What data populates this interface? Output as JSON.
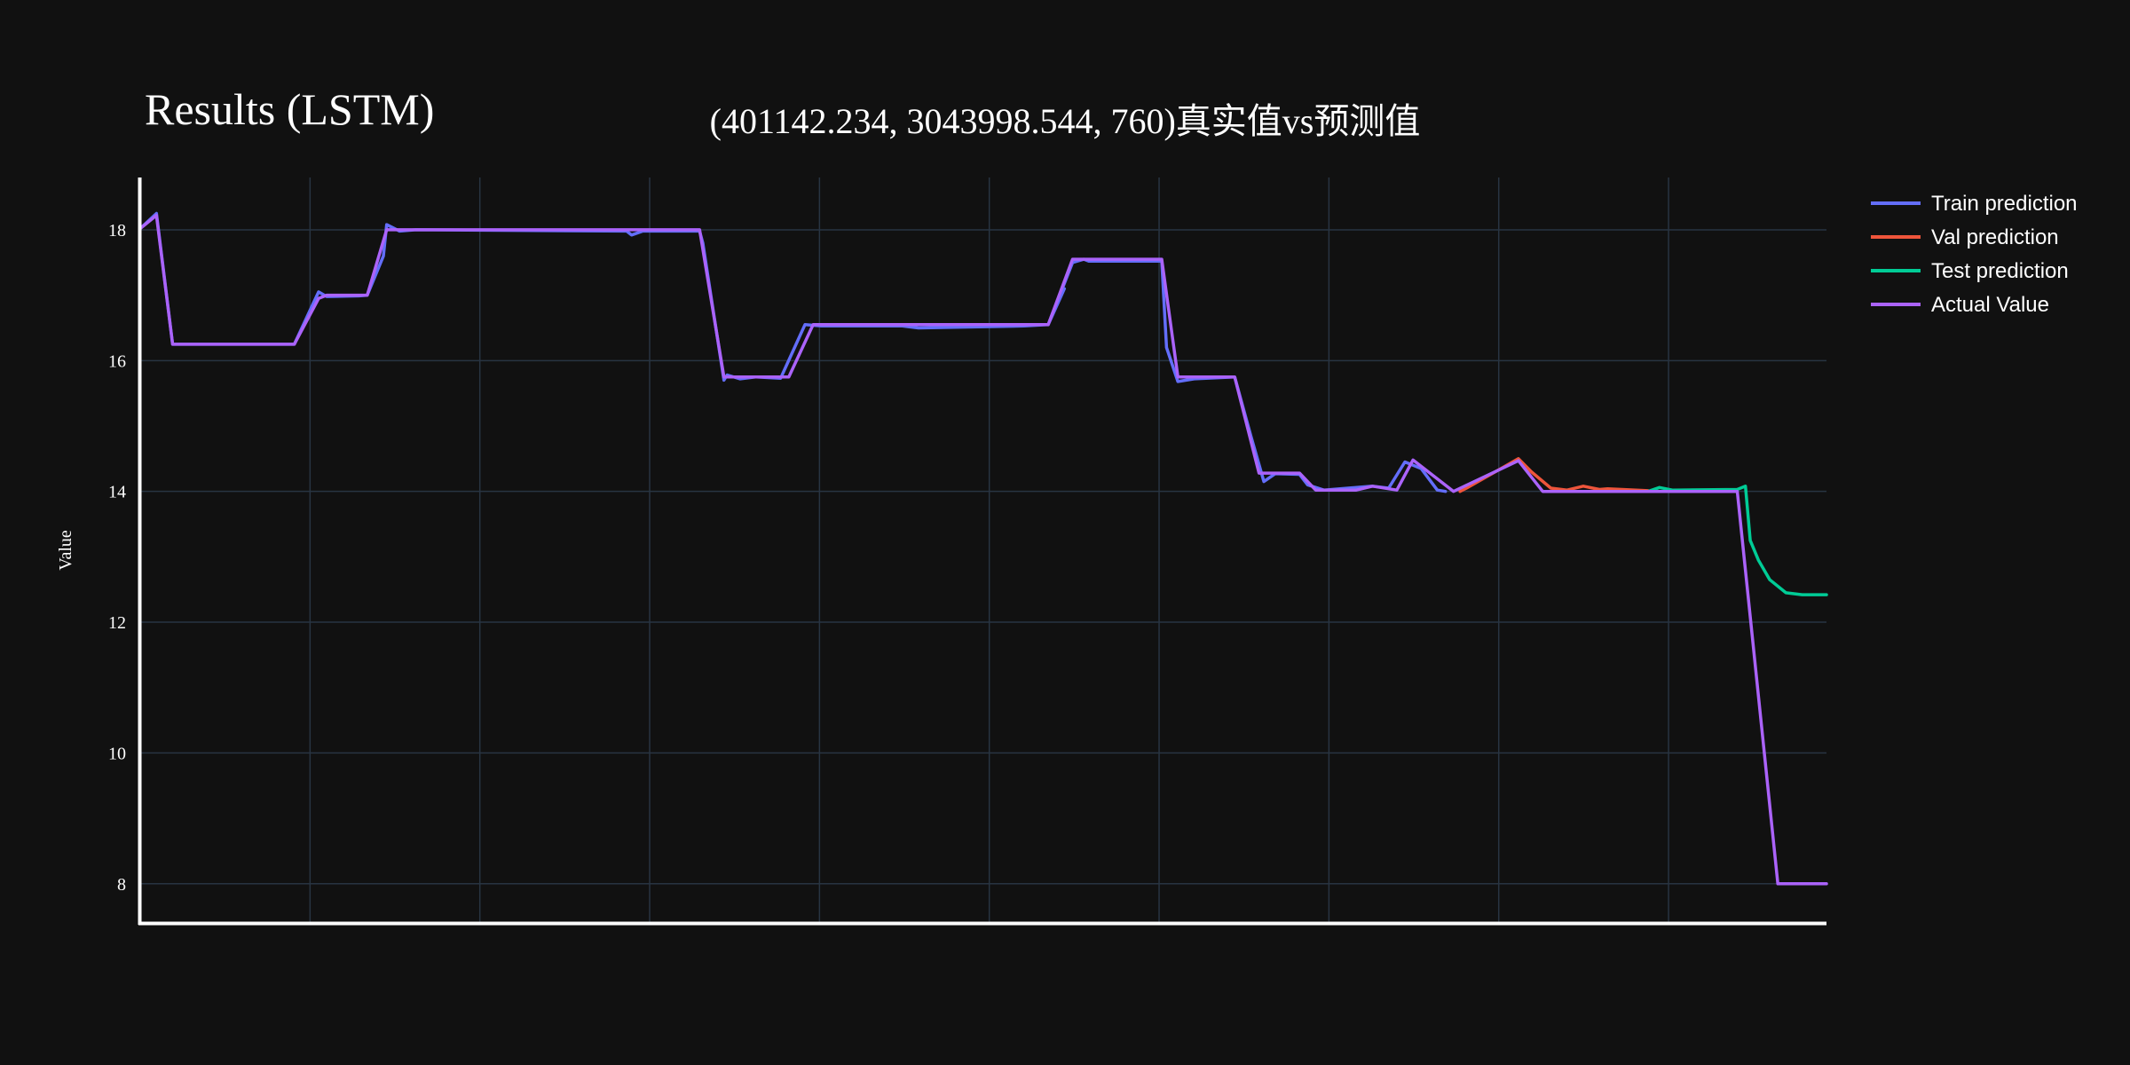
{
  "chart_data": {
    "type": "line",
    "title": "Results (LSTM)",
    "subtitle": "(401142.234, 3043998.544, 760)真实值vs预测值",
    "xlabel": "",
    "ylabel": "Value",
    "xlim": [
      0,
      1000
    ],
    "ylim": [
      7.4,
      18.8
    ],
    "yticks": [
      8,
      10,
      12,
      14,
      16,
      18
    ],
    "x_gridlines": 9,
    "grid": true,
    "legend_position": "top-right",
    "background": "#111111",
    "series": [
      {
        "name": "Train prediction",
        "color": "#636efa",
        "points": [
          [
            0,
            18.02
          ],
          [
            10,
            18.25
          ],
          [
            20,
            16.25
          ],
          [
            95,
            16.25
          ],
          [
            110,
            17.05
          ],
          [
            115,
            16.98
          ],
          [
            135,
            16.99
          ],
          [
            140,
            17.0
          ],
          [
            150,
            17.6
          ],
          [
            152,
            18.08
          ],
          [
            160,
            17.98
          ],
          [
            170,
            18.0
          ],
          [
            300,
            17.98
          ],
          [
            303,
            17.92
          ],
          [
            310,
            17.98
          ],
          [
            345,
            17.98
          ],
          [
            347,
            17.8
          ],
          [
            360,
            15.7
          ],
          [
            362,
            15.78
          ],
          [
            370,
            15.72
          ],
          [
            380,
            15.75
          ],
          [
            395,
            15.73
          ],
          [
            410,
            16.55
          ],
          [
            420,
            16.53
          ],
          [
            470,
            16.53
          ],
          [
            480,
            16.5
          ],
          [
            545,
            16.53
          ],
          [
            560,
            16.55
          ],
          [
            570,
            17.1
          ],
          [
            560,
            16.55
          ],
          [
            575,
            17.5
          ],
          [
            582,
            17.55
          ],
          [
            585,
            17.52
          ],
          [
            615,
            17.52
          ],
          [
            630,
            17.52
          ],
          [
            633,
            16.2
          ],
          [
            640,
            15.68
          ],
          [
            650,
            15.72
          ],
          [
            675,
            15.75
          ],
          [
            685,
            14.85
          ],
          [
            693,
            14.15
          ],
          [
            700,
            14.27
          ],
          [
            715,
            14.26
          ],
          [
            720,
            14.1
          ],
          [
            730,
            14.02
          ],
          [
            760,
            14.08
          ],
          [
            770,
            14.05
          ],
          [
            780,
            14.45
          ],
          [
            790,
            14.35
          ],
          [
            800,
            14.02
          ],
          [
            805,
            14.0
          ]
        ]
      },
      {
        "name": "Val prediction",
        "color": "#ef553b",
        "points": [
          [
            814,
            14.0
          ],
          [
            818,
            14.05
          ],
          [
            850,
            14.5
          ],
          [
            858,
            14.3
          ],
          [
            870,
            14.05
          ],
          [
            880,
            14.02
          ],
          [
            890,
            14.08
          ],
          [
            900,
            14.03
          ],
          [
            905,
            14.04
          ],
          [
            930,
            14.01
          ]
        ]
      },
      {
        "name": "Test prediction",
        "color": "#00cc96",
        "points": [
          [
            930,
            14.0
          ],
          [
            937,
            14.06
          ],
          [
            945,
            14.02
          ],
          [
            985,
            14.03
          ],
          [
            990,
            14.08
          ],
          [
            993,
            13.25
          ],
          [
            998,
            12.95
          ],
          [
            1005,
            12.65
          ],
          [
            1015,
            12.45
          ],
          [
            1025,
            12.42
          ],
          [
            1040,
            12.42
          ]
        ]
      },
      {
        "name": "Actual Value",
        "color": "#ab63fa",
        "points": [
          [
            0,
            18.02
          ],
          [
            10,
            18.22
          ],
          [
            20,
            16.25
          ],
          [
            95,
            16.25
          ],
          [
            110,
            16.95
          ],
          [
            115,
            17.0
          ],
          [
            140,
            17.0
          ],
          [
            152,
            18.0
          ],
          [
            345,
            18.0
          ],
          [
            360,
            15.75
          ],
          [
            400,
            15.75
          ],
          [
            415,
            16.55
          ],
          [
            560,
            16.55
          ],
          [
            575,
            17.55
          ],
          [
            615,
            17.55
          ],
          [
            630,
            17.55
          ],
          [
            640,
            15.75
          ],
          [
            675,
            15.75
          ],
          [
            690,
            14.28
          ],
          [
            715,
            14.28
          ],
          [
            725,
            14.02
          ],
          [
            750,
            14.02
          ],
          [
            760,
            14.08
          ],
          [
            775,
            14.02
          ],
          [
            785,
            14.48
          ],
          [
            810,
            14.0
          ],
          [
            850,
            14.47
          ],
          [
            865,
            14.0
          ],
          [
            985,
            14.0
          ],
          [
            1010,
            8.0
          ],
          [
            1040,
            8.0
          ]
        ]
      }
    ]
  }
}
